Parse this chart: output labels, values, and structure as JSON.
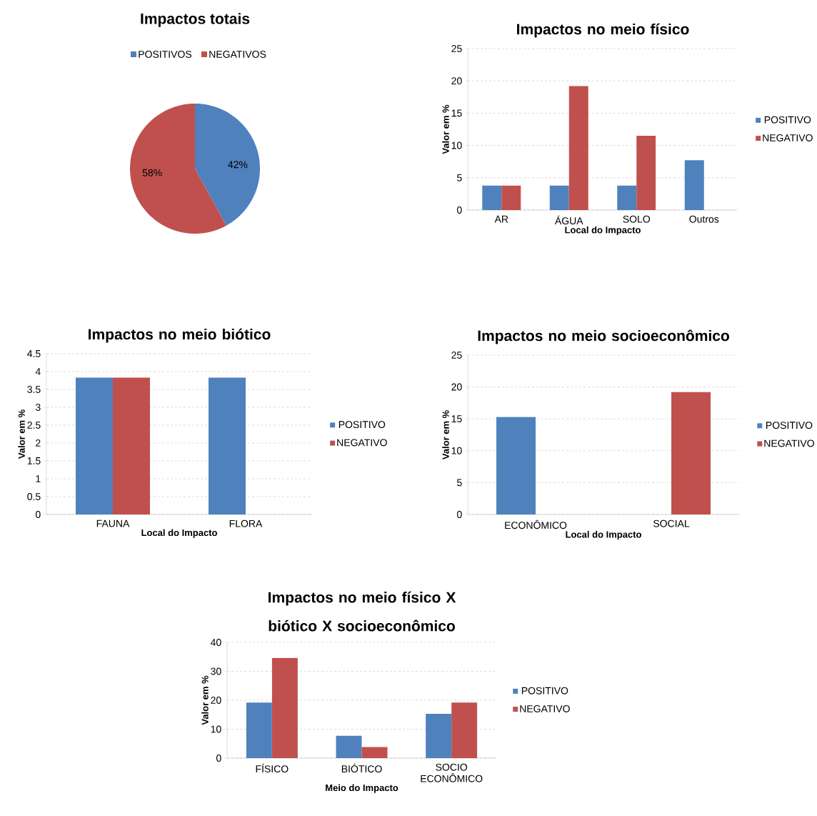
{
  "chart_data": [
    {
      "type": "pie",
      "title": "Impactos totais",
      "categories": [
        "POSITIVOS",
        "NEGATIVOS"
      ],
      "values": [
        42,
        58
      ],
      "colors": [
        "#4f81bd",
        "#c0504d"
      ],
      "value_labels": [
        "42%",
        "58%"
      ],
      "legend": "top"
    },
    {
      "type": "bar",
      "title": "Impactos no meio físico",
      "xlabel": "Local do Impacto",
      "ylabel": "Valor em %",
      "categories": [
        "AR",
        "ÁGUA",
        "SOLO",
        "Outros"
      ],
      "series": [
        {
          "name": "POSITIVO",
          "color": "#4f81bd",
          "values": [
            3.8,
            3.8,
            3.8,
            7.7
          ]
        },
        {
          "name": "NEGATIVO",
          "color": "#c0504d",
          "values": [
            3.8,
            19.2,
            11.5,
            null
          ]
        }
      ],
      "ylim": [
        0,
        25
      ],
      "yticks": [
        0,
        5,
        10,
        15,
        20,
        25
      ],
      "grid": "y",
      "legend": "right"
    },
    {
      "type": "bar",
      "title": "Impactos no meio biótico",
      "xlabel": "Local do Impacto",
      "ylabel": "Valor em %",
      "categories": [
        "FAUNA",
        "FLORA"
      ],
      "series": [
        {
          "name": "POSITIVO",
          "color": "#4f81bd",
          "values": [
            3.83,
            3.83
          ]
        },
        {
          "name": "NEGATIVO",
          "color": "#c0504d",
          "values": [
            3.83,
            null
          ]
        }
      ],
      "ylim": [
        0,
        4.5
      ],
      "yticks": [
        0,
        0.5,
        1,
        1.5,
        2,
        2.5,
        3,
        3.5,
        4,
        4.5
      ],
      "grid": "y",
      "legend": "right"
    },
    {
      "type": "bar",
      "title": "Impactos no meio socioeconômico",
      "xlabel": "Local do Impacto",
      "ylabel": "Valor em %",
      "categories": [
        "ECONÔMICO",
        "SOCIAL"
      ],
      "series": [
        {
          "name": "POSITIVO",
          "color": "#4f81bd",
          "values": [
            15.3,
            null
          ]
        },
        {
          "name": "NEGATIVO",
          "color": "#c0504d",
          "values": [
            null,
            19.2
          ]
        }
      ],
      "ylim": [
        0,
        25
      ],
      "yticks": [
        0,
        5,
        10,
        15,
        20,
        25
      ],
      "grid": "y",
      "legend": "right"
    },
    {
      "type": "bar",
      "title": "Impactos no meio físico X biótico X socioeconômico",
      "xlabel": "Meio do Impacto",
      "ylabel": "Valor em %",
      "categories": [
        "FÍSICO",
        "BIÓTICO",
        "SOCIO ECONÔMICO"
      ],
      "series": [
        {
          "name": "POSITIVO",
          "color": "#4f81bd",
          "values": [
            19.2,
            7.7,
            15.3
          ]
        },
        {
          "name": "NEGATIVO",
          "color": "#c0504d",
          "values": [
            34.6,
            3.8,
            19.2
          ]
        }
      ],
      "ylim": [
        0,
        40
      ],
      "yticks": [
        0,
        10,
        20,
        30,
        40
      ],
      "grid": "y",
      "legend": "right"
    }
  ]
}
